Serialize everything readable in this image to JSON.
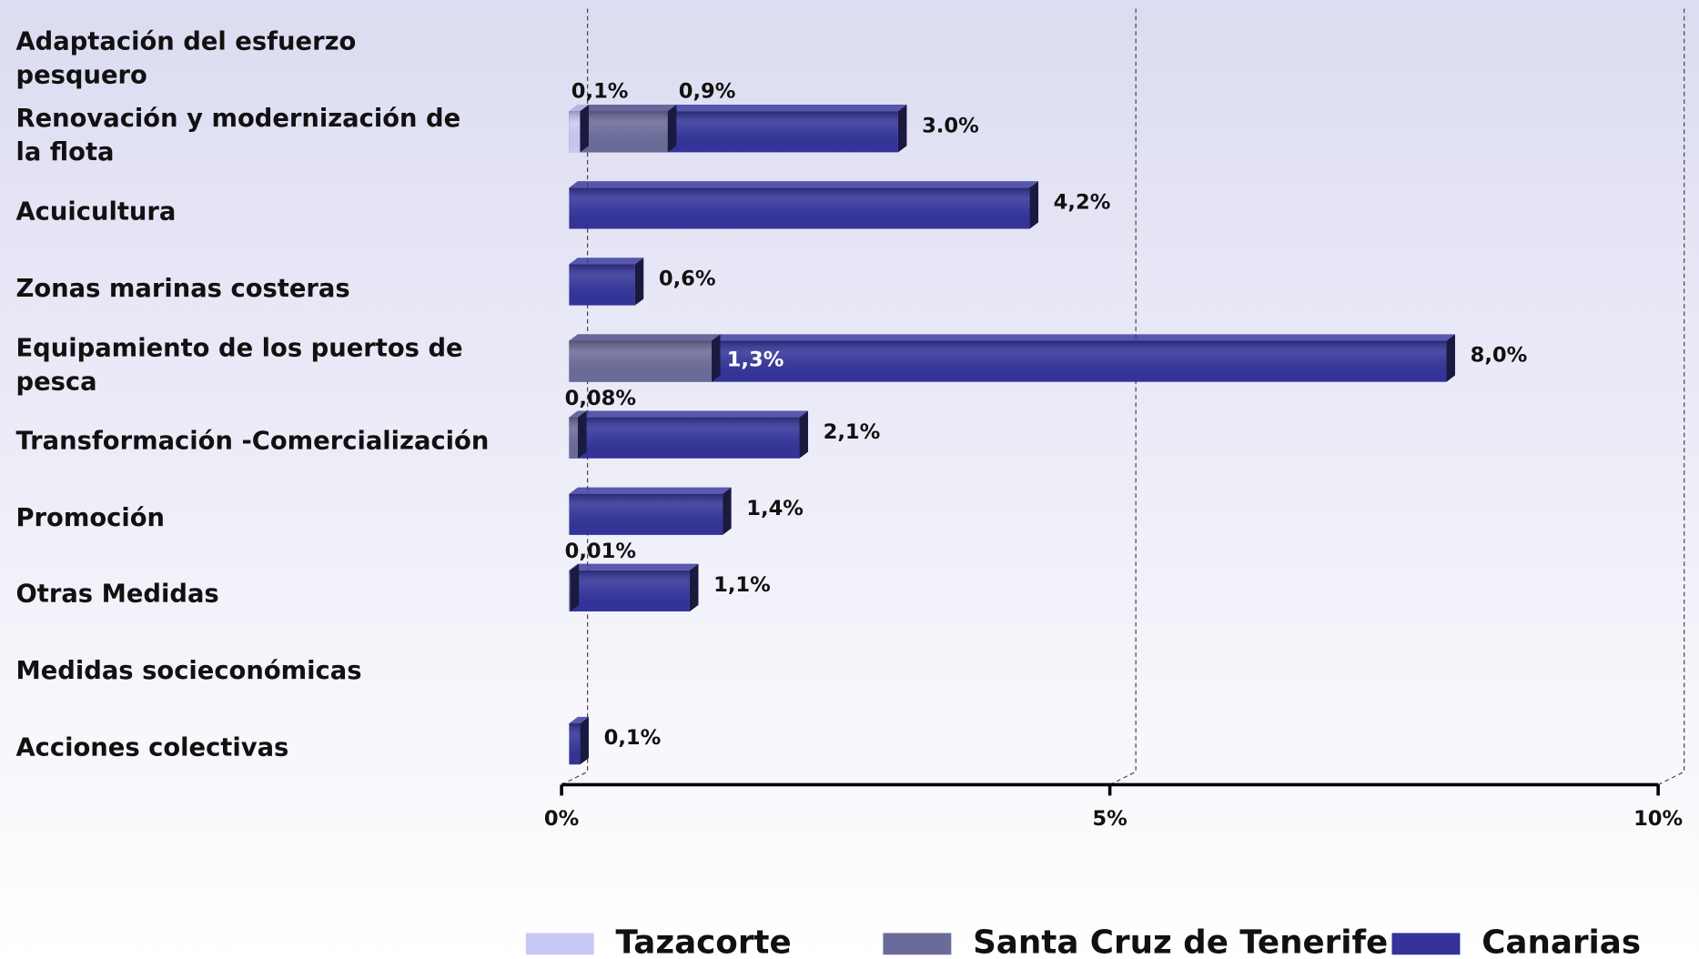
{
  "chart_data": {
    "type": "bar",
    "orientation": "horizontal",
    "categories": [
      "Adaptación del esfuerzo pesquero",
      "Renovación y modernización de la flota",
      "Acuicultura",
      "Zonas marinas costeras",
      "Equipamiento de los puertos de pesca",
      "Transformación -Comercialización",
      "Promoción",
      "Otras Medidas",
      "Medidas socieconómicas",
      "Acciones colectivas"
    ],
    "series": [
      {
        "name": "Tazacorte",
        "color": "#c8c8f5",
        "values": [
          null,
          0.1,
          null,
          null,
          null,
          null,
          null,
          null,
          null,
          null
        ],
        "value_labels": [
          null,
          "0,1%",
          null,
          null,
          null,
          null,
          null,
          null,
          null,
          null
        ]
      },
      {
        "name": "Santa Cruz de Tenerife",
        "color": "#6b6b9a",
        "values": [
          null,
          0.9,
          null,
          null,
          1.3,
          0.08,
          null,
          0.01,
          null,
          null
        ],
        "value_labels": [
          null,
          "0,9%",
          null,
          null,
          "1,3%",
          "0,08%",
          null,
          "0,01%",
          null,
          null
        ]
      },
      {
        "name": "Canarias",
        "color": "#33339a",
        "values": [
          null,
          3.0,
          4.2,
          0.6,
          8.0,
          2.1,
          1.4,
          1.1,
          null,
          0.1
        ],
        "value_labels": [
          null,
          "3.0%",
          "4,2%",
          "0,6%",
          "8,0%",
          "2,1%",
          "1,4%",
          "1,1%",
          null,
          "0,1%"
        ]
      }
    ],
    "xlim": [
      0,
      10
    ],
    "xticks": [
      {
        "value": 0,
        "label": "0%"
      },
      {
        "value": 5,
        "label": "5%"
      },
      {
        "value": 10,
        "label": "10%"
      }
    ],
    "grid": true,
    "legend": "bottom"
  }
}
